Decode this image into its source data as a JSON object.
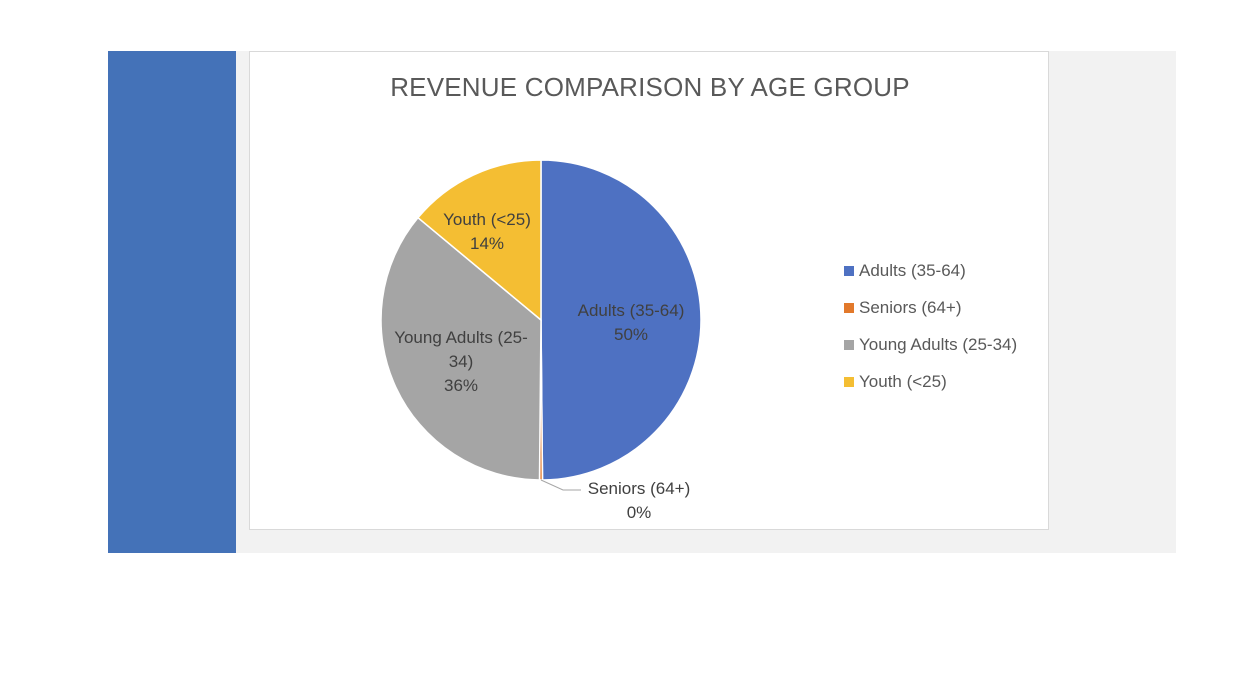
{
  "chart_data": {
    "type": "pie",
    "title": "REVENUE COMPARISON BY AGE GROUP",
    "categories": [
      "Adults (35-64)",
      "Seniors (64+)",
      "Young Adults (25-34)",
      "Youth (<25)"
    ],
    "values": [
      50,
      0.3,
      36,
      14
    ],
    "labels": [
      {
        "lines": [
          "Adults (35-64)",
          "50%"
        ]
      },
      {
        "lines": [
          "Seniors (64+)",
          "0%"
        ]
      },
      {
        "lines": [
          "Young Adults (25-",
          "34)",
          "36%"
        ]
      },
      {
        "lines": [
          "Youth (<25)",
          "14%"
        ]
      }
    ],
    "colors": [
      "#4e71c2",
      "#e2792b",
      "#a5a5a5",
      "#f4be33"
    ],
    "legend": {
      "placement": "right",
      "entries": [
        "Adults (35-64)",
        "Seniors (64+)",
        "Young Adults (25-34)",
        "Youth (<25)"
      ]
    }
  }
}
